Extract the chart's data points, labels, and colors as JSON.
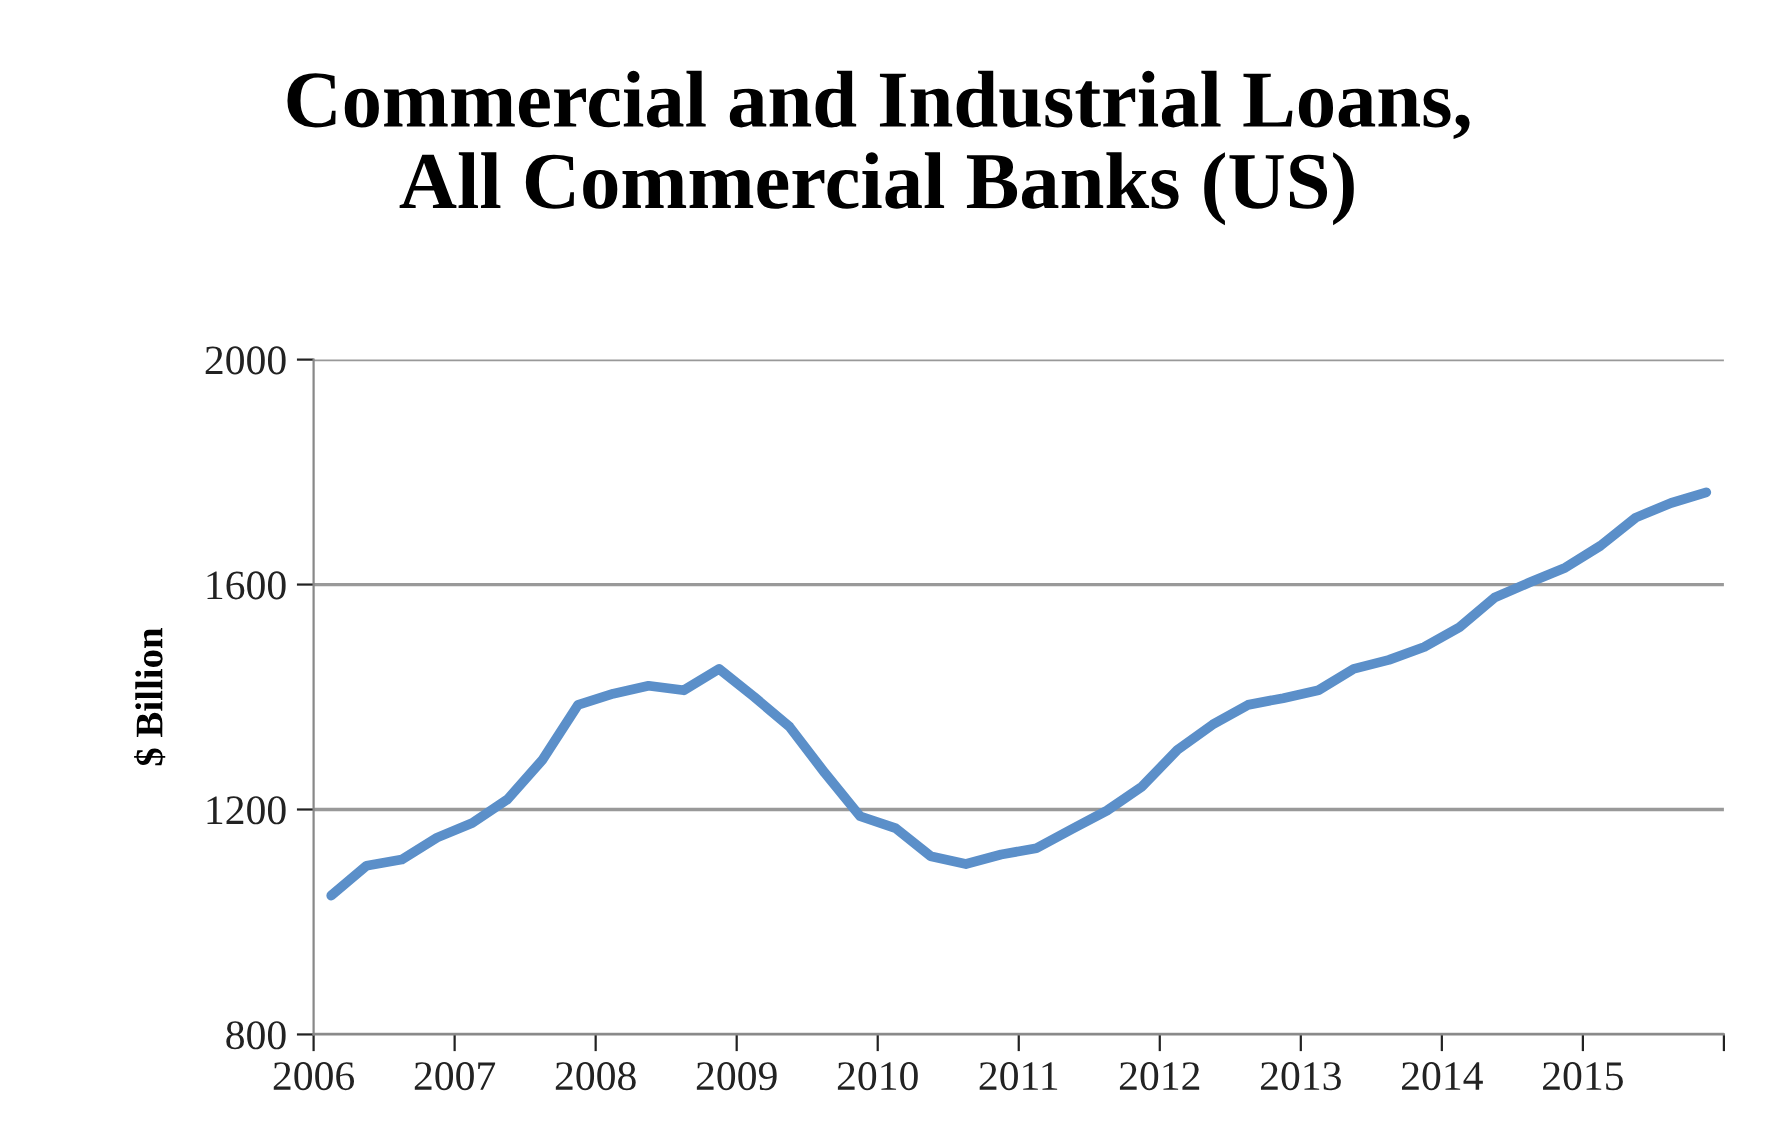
{
  "chart_data": {
    "type": "line",
    "title": "Commercial and Industrial Loans,\nAll Commercial Banks (US)",
    "ylabel": "$ Billion",
    "x": [
      2006.125,
      2006.375,
      2006.625,
      2006.875,
      2007.125,
      2007.375,
      2007.625,
      2007.875,
      2008.125,
      2008.375,
      2008.625,
      2008.875,
      2009.125,
      2009.375,
      2009.625,
      2009.875,
      2010.125,
      2010.375,
      2010.625,
      2010.875,
      2011.125,
      2011.375,
      2011.625,
      2011.875,
      2012.125,
      2012.375,
      2012.625,
      2012.875,
      2013.125,
      2013.375,
      2013.625,
      2013.875,
      2014.125,
      2014.375,
      2014.625,
      2014.875,
      2015.125,
      2015.375,
      2015.625,
      2015.875
    ],
    "series": [
      {
        "color": "#5b8fc9",
        "values": [
          1047,
          1100,
          1111,
          1150,
          1176,
          1218,
          1289,
          1386,
          1406,
          1420,
          1412,
          1450,
          1400,
          1347,
          1265,
          1188,
          1167,
          1117,
          1103,
          1120,
          1131,
          1165,
          1198,
          1241,
          1306,
          1351,
          1386,
          1398,
          1412,
          1450,
          1466,
          1489,
          1524,
          1577,
          1604,
          1630,
          1669,
          1719,
          1745,
          1764
        ]
      }
    ],
    "xlim": [
      2006,
      2016
    ],
    "xticks": [
      2006,
      2007,
      2008,
      2009,
      2010,
      2011,
      2012,
      2013,
      2014,
      2015,
      {
        "value": 2016,
        "label": null
      }
    ],
    "ylim": [
      800,
      2000
    ],
    "yticks": [
      800,
      1200,
      1600,
      2000
    ],
    "grid": "y",
    "marker": "none",
    "line_style": "solid"
  }
}
